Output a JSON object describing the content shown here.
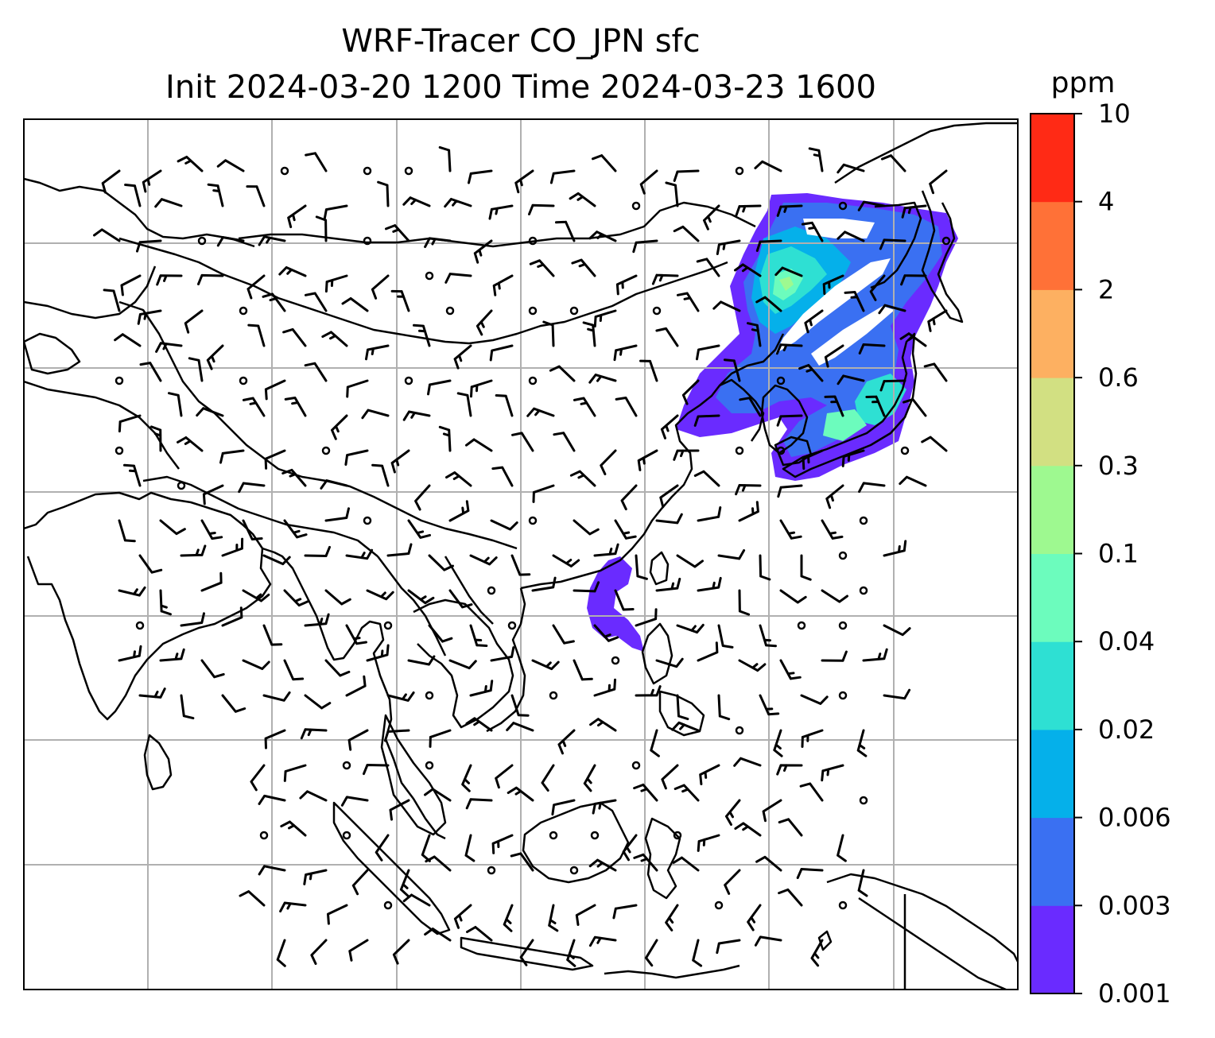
{
  "title": {
    "line1": "WRF-Tracer CO_JPN sfc",
    "line2": "Init 2024-03-20 1200 Time 2024-03-23 1600"
  },
  "colorbar": {
    "unit": "ppm",
    "levels": [
      "0.001",
      "0.003",
      "0.006",
      "0.02",
      "0.04",
      "0.1",
      "0.3",
      "0.6",
      "2",
      "4",
      "10"
    ],
    "colors": [
      "#6a2bff",
      "#3a70f2",
      "#05b0ea",
      "#2ee0d3",
      "#6cfcbd",
      "#9ef990",
      "#d2e082",
      "#fdb061",
      "#ff7137",
      "#ff2a15"
    ]
  },
  "map": {
    "gridlines": true,
    "features": [
      "coastlines",
      "country-borders",
      "wind-barbs",
      "tracer-plume"
    ]
  }
}
